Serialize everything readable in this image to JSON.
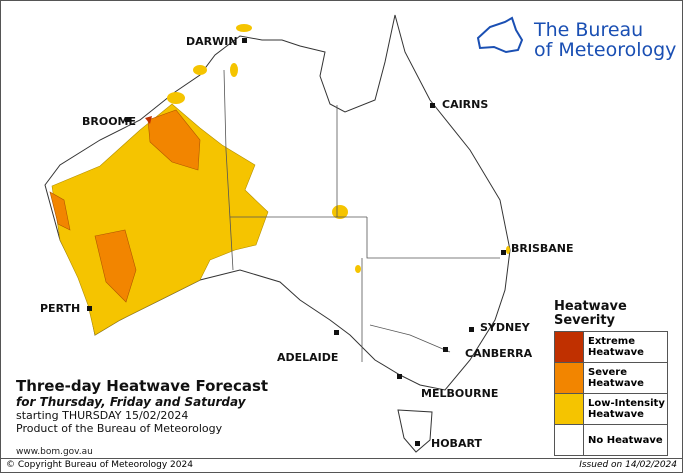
{
  "logo": {
    "line1": "The Bureau",
    "line2": "of Meteorology"
  },
  "cities": [
    "DARWIN",
    "BROOME",
    "CAIRNS",
    "BRISBANE",
    "PERTH",
    "SYDNEY",
    "CANBERRA",
    "ADELAIDE",
    "MELBOURNE",
    "HOBART"
  ],
  "info": {
    "title": "Three-day Heatwave Forecast",
    "subtitle": "for Thursday, Friday and Saturday",
    "starting": "starting THURSDAY 15/02/2024",
    "product": "Product of the Bureau of Meteorology",
    "website": "www.bom.gov.au"
  },
  "legend": {
    "title": "Heatwave Severity",
    "items": [
      "Extreme Heatwave",
      "Severe Heatwave",
      "Low-Intensity Heatwave",
      "No Heatwave"
    ]
  },
  "footer": {
    "copyright": "© Copyright Bureau of Meteorology 2024",
    "issued": "Issued on 14/02/2024"
  }
}
